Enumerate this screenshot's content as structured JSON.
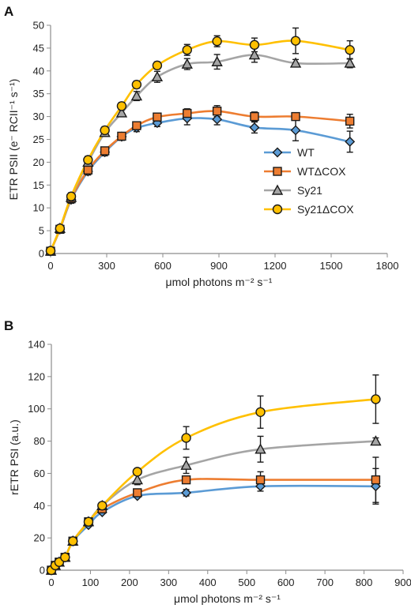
{
  "colors": {
    "WT": "#5b9bd5",
    "WTdCOX": "#ed7d31",
    "Sy21": "#a5a5a5",
    "Sy21dCOX": "#ffc000"
  },
  "chart_data": [
    {
      "panel_label": "A",
      "type": "line",
      "xlabel": "μmol photons m⁻² s⁻¹",
      "ylabel": "ETR PSII (e⁻ RCII⁻¹ s⁻¹)",
      "xlim": [
        0,
        1800
      ],
      "ylim": [
        0,
        50
      ],
      "xticks": [
        0,
        300,
        600,
        900,
        1200,
        1500,
        1800
      ],
      "yticks": [
        0,
        5,
        10,
        15,
        20,
        25,
        30,
        35,
        40,
        45,
        50
      ],
      "grid": false,
      "legend_position": "center-right",
      "series": [
        {
          "name": "WT",
          "marker": "diamond-icon",
          "color": "#5b9bd5",
          "x": [
            0,
            50,
            110,
            200,
            290,
            380,
            460,
            570,
            730,
            890,
            1090,
            1310,
            1600
          ],
          "y": [
            0.5,
            5.3,
            11.8,
            18.0,
            22.2,
            25.6,
            27.5,
            28.6,
            29.6,
            29.4,
            27.6,
            27.0,
            24.5
          ],
          "err": [
            0.3,
            0.5,
            0.8,
            0.8,
            0.8,
            0.8,
            0.8,
            0.8,
            1.4,
            1.2,
            1.2,
            2.3,
            2.3
          ]
        },
        {
          "name": "WTΔCOX",
          "marker": "square-icon",
          "color": "#ed7d31",
          "x": [
            0,
            50,
            110,
            200,
            290,
            380,
            460,
            570,
            730,
            890,
            1090,
            1310,
            1600
          ],
          "y": [
            0.5,
            5.3,
            12.0,
            18.3,
            22.5,
            25.7,
            28.0,
            29.9,
            30.7,
            31.2,
            30.0,
            30.0,
            29.0
          ],
          "err": [
            0.3,
            0.5,
            0.8,
            0.8,
            0.8,
            0.8,
            0.8,
            0.8,
            1.0,
            1.2,
            1.0,
            0.8,
            1.5
          ]
        },
        {
          "name": "Sy21",
          "marker": "triangle-icon",
          "color": "#a5a5a5",
          "x": [
            0,
            50,
            110,
            200,
            290,
            380,
            460,
            570,
            730,
            890,
            1090,
            1310,
            1600
          ],
          "y": [
            0.5,
            5.5,
            12.3,
            20.0,
            26.5,
            30.8,
            34.5,
            38.7,
            41.5,
            42.0,
            43.5,
            41.7,
            41.7
          ],
          "err": [
            0.3,
            0.5,
            0.8,
            0.8,
            0.8,
            0.8,
            1.0,
            1.2,
            1.2,
            1.6,
            1.6,
            0.8,
            1.0
          ]
        },
        {
          "name": "Sy21ΔCOX",
          "marker": "circle-icon",
          "color": "#ffc000",
          "x": [
            0,
            50,
            110,
            200,
            290,
            380,
            460,
            570,
            730,
            890,
            1090,
            1310,
            1600
          ],
          "y": [
            0.6,
            5.5,
            12.5,
            20.5,
            27.0,
            32.3,
            37.0,
            41.2,
            44.6,
            46.5,
            45.7,
            46.6,
            44.6
          ],
          "err": [
            0.3,
            0.5,
            0.8,
            0.8,
            0.8,
            0.8,
            0.8,
            0.8,
            1.2,
            1.2,
            1.5,
            2.8,
            2.0
          ]
        }
      ]
    },
    {
      "panel_label": "B",
      "type": "line",
      "xlabel": "μmol photons m⁻² s⁻¹",
      "ylabel": "rETR PSI (a.u.)",
      "xlim": [
        0,
        900
      ],
      "ylim": [
        0,
        140
      ],
      "xticks": [
        0,
        100,
        200,
        300,
        400,
        500,
        600,
        700,
        800,
        900
      ],
      "yticks": [
        0,
        20,
        40,
        60,
        80,
        100,
        120,
        140
      ],
      "grid": false,
      "series": [
        {
          "name": "WT",
          "marker": "diamond-icon",
          "color": "#5b9bd5",
          "x": [
            0,
            10,
            20,
            35,
            55,
            95,
            130,
            220,
            345,
            535,
            830
          ],
          "y": [
            0,
            3,
            5,
            8,
            18,
            28,
            36,
            46,
            48,
            52,
            52
          ],
          "err": [
            0,
            0,
            0,
            0,
            0,
            0,
            0,
            0,
            2,
            3,
            11
          ]
        },
        {
          "name": "WTΔCOX",
          "marker": "square-icon",
          "color": "#ed7d31",
          "x": [
            0,
            10,
            20,
            35,
            55,
            95,
            130,
            220,
            345,
            535,
            830
          ],
          "y": [
            0,
            3,
            5,
            8,
            18,
            30,
            38,
            48,
            56,
            56,
            56
          ],
          "err": [
            0,
            0,
            0,
            0,
            0,
            0,
            0,
            0,
            0,
            5,
            14
          ]
        },
        {
          "name": "Sy21",
          "marker": "triangle-icon",
          "color": "#a5a5a5",
          "x": [
            0,
            10,
            20,
            35,
            55,
            95,
            130,
            220,
            345,
            535,
            830
          ],
          "y": [
            0,
            3,
            5,
            8,
            18,
            30,
            40,
            56,
            65,
            75,
            80
          ],
          "err": [
            0,
            0,
            0,
            0,
            0,
            0,
            0,
            3,
            5,
            8,
            2
          ]
        },
        {
          "name": "Sy21ΔCOX",
          "marker": "circle-icon",
          "color": "#ffc000",
          "x": [
            0,
            10,
            20,
            35,
            55,
            95,
            130,
            220,
            345,
            535,
            830
          ],
          "y": [
            0,
            3,
            5,
            8,
            18,
            30,
            40,
            61,
            82,
            98,
            106
          ],
          "err": [
            0,
            0,
            0,
            0,
            0,
            0,
            0,
            0,
            7,
            10,
            15
          ]
        }
      ]
    }
  ]
}
